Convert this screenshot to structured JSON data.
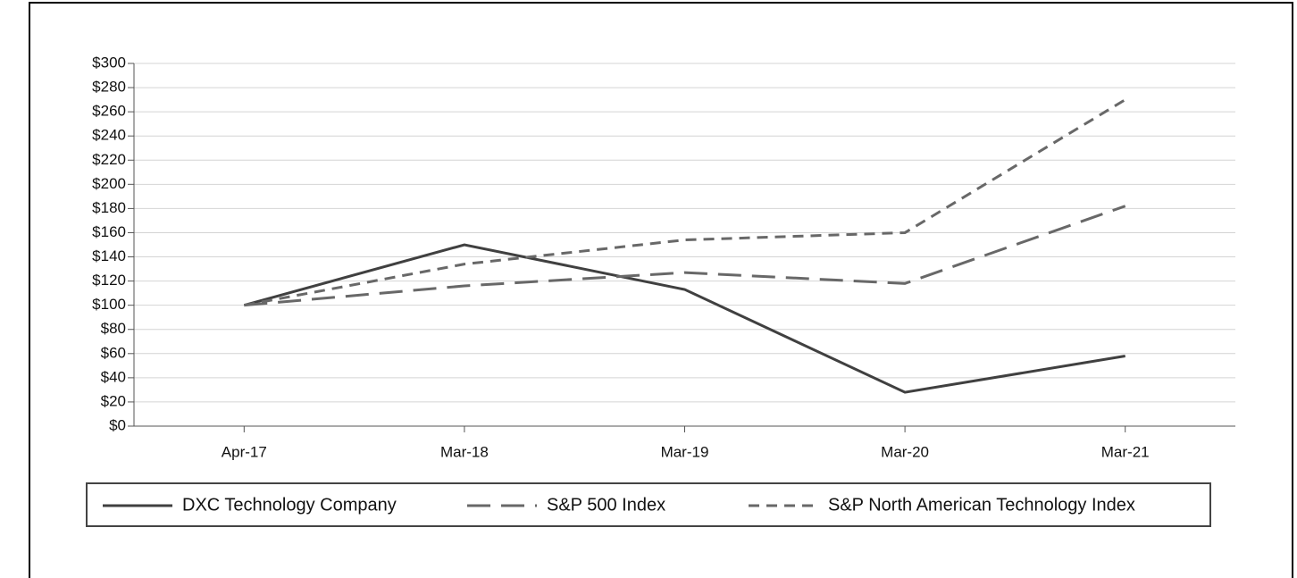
{
  "chart_data": {
    "type": "line",
    "categories": [
      "Apr-17",
      "Mar-18",
      "Mar-19",
      "Mar-20",
      "Mar-21"
    ],
    "series": [
      {
        "name": "DXC Technology Company",
        "color": "#404040",
        "dash": "none",
        "values": [
          100,
          150,
          113,
          28,
          58
        ]
      },
      {
        "name": "S&P 500 Index",
        "color": "#686868",
        "dash": "26 12",
        "values": [
          100,
          116,
          127,
          118,
          182
        ]
      },
      {
        "name": "S&P North American Technology Index",
        "color": "#686868",
        "dash": "12 8",
        "values": [
          100,
          134,
          154,
          160,
          270
        ]
      }
    ],
    "ylim": [
      0,
      300
    ],
    "yticks": [
      {
        "value": 0,
        "label": "$0"
      },
      {
        "value": 20,
        "label": "$20"
      },
      {
        "value": 40,
        "label": "$40"
      },
      {
        "value": 60,
        "label": "$60"
      },
      {
        "value": 80,
        "label": "$80"
      },
      {
        "value": 100,
        "label": "$100"
      },
      {
        "value": 120,
        "label": "$120"
      },
      {
        "value": 140,
        "label": "$140"
      },
      {
        "value": 160,
        "label": "$160"
      },
      {
        "value": 180,
        "label": "$180"
      },
      {
        "value": 200,
        "label": "$200"
      },
      {
        "value": 220,
        "label": "$220"
      },
      {
        "value": 240,
        "label": "$240"
      },
      {
        "value": 260,
        "label": "$260"
      },
      {
        "value": 280,
        "label": "$280"
      },
      {
        "value": 300,
        "label": "$300"
      }
    ],
    "grid": true,
    "legend": "bottom"
  }
}
